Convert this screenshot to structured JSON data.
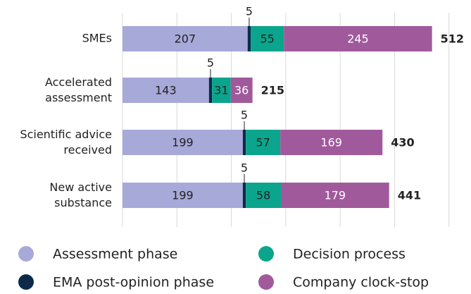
{
  "chart_data": {
    "type": "stacked-barh",
    "categories": [
      "SMEs",
      "Accelerated assessment",
      "Scientific advice received",
      "New active substance"
    ],
    "series": [
      {
        "name": "Assessment phase",
        "color": "#a7a9d8",
        "values": [
          207,
          143,
          199,
          199
        ]
      },
      {
        "name": "EMA post-opinion phase",
        "color": "#0d2a4a",
        "values": [
          5,
          5,
          5,
          5
        ]
      },
      {
        "name": "Decision process",
        "color": "#0aa58c",
        "values": [
          55,
          31,
          57,
          58
        ]
      },
      {
        "name": "Company clock-stop",
        "color": "#a05a9c",
        "values": [
          245,
          36,
          169,
          179
        ]
      }
    ],
    "totals": [
      512,
      215,
      430,
      441
    ],
    "xlim": [
      0,
      545
    ],
    "xticks": [
      0,
      90,
      180,
      270,
      360,
      450,
      540
    ],
    "grid": true
  }
}
